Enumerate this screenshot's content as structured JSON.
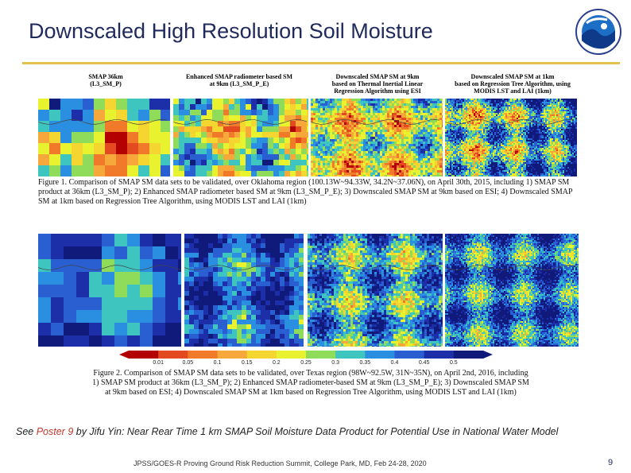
{
  "slide": {
    "title": "Downscaled High Resolution Soil Moisture",
    "page_number": "9",
    "footer": "JPSS/GOES-R Proving Ground Risk Reduction Summit, College Park, MD, Feb 24-28, 2020"
  },
  "figure1": {
    "panel_labels": [
      "SMAP 36km\n(L3_SM_P)",
      "Enhanced SMAP radiometer based SM\nat 9km (L3_SM_P_E)",
      "Downscaled SMAP SM at 9km\nbased on Thermal Inertial Linear\nRegression Algorithm using ESI",
      "Downscaled SMAP SM at 1km\nbased on Regression Tree Algorithm, using\nMODIS LST and LAI (1km)"
    ],
    "caption": "Figure 1. Comparison of SMAP SM data sets to be validated, over Oklahoma region (100.13W~94.33W, 34.2N~37.06N), on April 30th, 2015, including 1) SMAP SM product at 36km (L3_SM_P); 2) Enhanced SMAP radiometer based SM at 9km (L3_SM_P_E); 3) Downscaled SMAP SM at 9km based on ESI; 4) Downscaled SMAP SM at 1km based on Regression Tree Algorithm, using MODIS LST and LAI (1km)"
  },
  "figure2": {
    "caption": "Figure 2. Comparison of SMAP SM data sets to be validated, over Texas region (98W~92.5W, 31N~35N), on April 2nd, 2016, including 1) SMAP SM product at 36km (L3_SM_P); 2) Enhanced SMAP radiometer-based SM at 9km (L3_SM_P_E); 3) Downscaled SMAP SM at 9km based on ESI; 4) Downscaled SMAP SM at 1km based on Regression Tree Algorithm, using MODIS LST and LAI (1km)"
  },
  "colorbar": {
    "ticks": [
      "0.01",
      "0.05",
      "0.1",
      "0.15",
      "0.2",
      "0.25",
      "0.3",
      "0.35",
      "0.4",
      "0.45",
      "0.5"
    ],
    "colors": [
      "#b30000",
      "#e34a1f",
      "#f07a2a",
      "#f6a83a",
      "#f5d631",
      "#e9f22e",
      "#8fdc5a",
      "#3fc5c0",
      "#2a8fe0",
      "#2a5fd2",
      "#1c2fa8",
      "#101a7a"
    ]
  },
  "note": {
    "prefix": "See ",
    "link": "Poster 9",
    "suffix": " by Jifu Yin: Near Rear Time 1 km SMAP Soil Moisture Data Product for Potential Use in National Water Model"
  }
}
